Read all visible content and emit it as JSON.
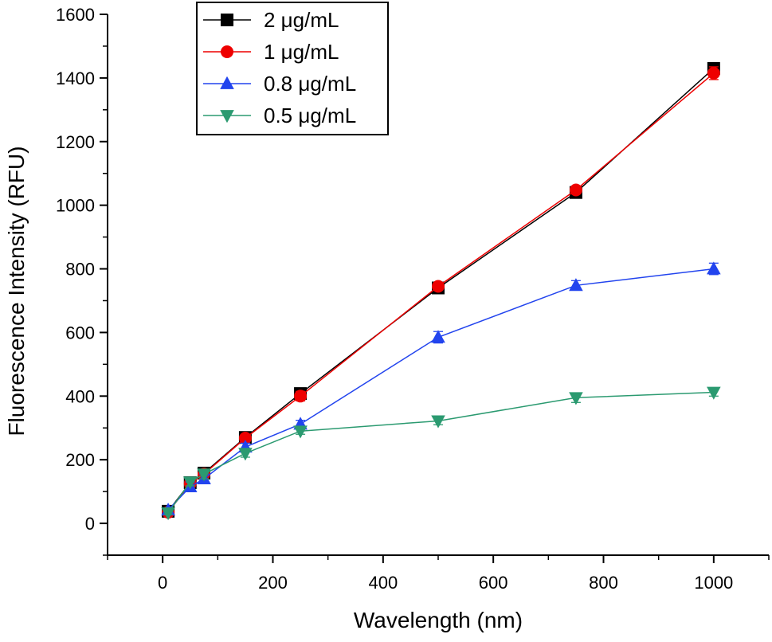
{
  "chart_data": {
    "type": "line",
    "xlabel": "Wavelength (nm)",
    "ylabel": "Fluorescence Intensity (RFU)",
    "xlim": [
      -100,
      1100
    ],
    "ylim": [
      -100,
      1600
    ],
    "x_ticks": [
      0,
      200,
      400,
      600,
      800,
      1000
    ],
    "y_ticks": [
      0,
      200,
      400,
      600,
      800,
      1000,
      1200,
      1400,
      1600
    ],
    "x_tick_labels": [
      "0",
      "200",
      "400",
      "600",
      "800",
      "1000"
    ],
    "y_tick_labels": [
      "0",
      "200",
      "400",
      "600",
      "800",
      "1000",
      "1200",
      "1400",
      "1600"
    ],
    "x": [
      10,
      50,
      75,
      150,
      250,
      500,
      750,
      1000
    ],
    "legend_position": "top-center",
    "grid": false,
    "series": [
      {
        "name": "2 μg/mL",
        "color": "#000000",
        "marker": "square",
        "values": [
          38,
          128,
          158,
          270,
          408,
          740,
          1040,
          1430
        ],
        "errors": [
          5,
          12,
          12,
          15,
          12,
          15,
          15,
          15
        ]
      },
      {
        "name": "1 μg/mL",
        "color": "#ee0000",
        "marker": "circle",
        "values": [
          35,
          125,
          155,
          268,
          400,
          745,
          1048,
          1415
        ],
        "errors": [
          5,
          15,
          15,
          12,
          15,
          12,
          12,
          20
        ]
      },
      {
        "name": "0.8 μg/mL",
        "color": "#2244ee",
        "marker": "triangle-up",
        "values": [
          42,
          115,
          140,
          240,
          312,
          585,
          748,
          800
        ],
        "errors": [
          5,
          15,
          15,
          12,
          12,
          18,
          15,
          18
        ]
      },
      {
        "name": "0.5 μg/mL",
        "color": "#2b9a70",
        "marker": "triangle-down",
        "values": [
          33,
          130,
          155,
          220,
          290,
          322,
          395,
          412
        ],
        "errors": [
          5,
          12,
          15,
          12,
          10,
          12,
          15,
          12
        ]
      }
    ]
  }
}
